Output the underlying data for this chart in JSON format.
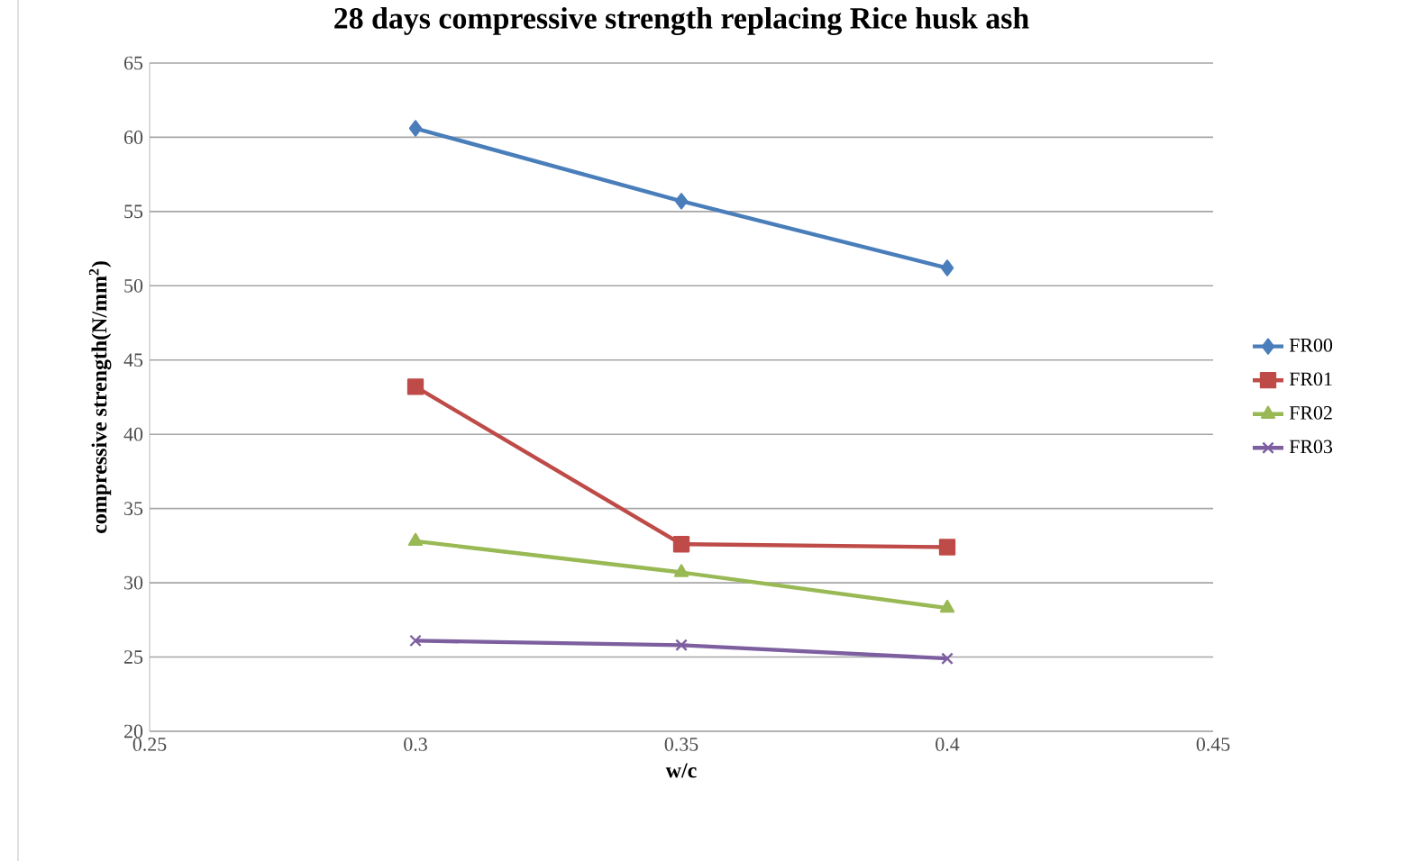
{
  "chart_data": {
    "type": "line",
    "title": "28 days compressive strength replacing Rice husk ash",
    "xlabel": "w/c",
    "ylabel": "compressive strength(N/mm$^{2}$)",
    "x": [
      0.3,
      0.35,
      0.4
    ],
    "series": [
      {
        "name": "FR00",
        "color": "#4a7ebb",
        "marker": "diamond",
        "values": [
          60.6,
          55.7,
          51.2
        ]
      },
      {
        "name": "FR01",
        "color": "#be4b48",
        "marker": "square",
        "values": [
          43.2,
          32.6,
          32.4
        ]
      },
      {
        "name": "FR02",
        "color": "#98b954",
        "marker": "triangle",
        "values": [
          32.8,
          30.7,
          28.3
        ]
      },
      {
        "name": "FR03",
        "color": "#7d5fa0",
        "marker": "cross",
        "values": [
          26.1,
          25.8,
          24.9
        ]
      }
    ],
    "xlim": [
      0.25,
      0.45
    ],
    "xticks": [
      0.25,
      0.3,
      0.35,
      0.4,
      0.45
    ],
    "ylim": [
      20,
      65
    ],
    "yticks": [
      20,
      25,
      30,
      35,
      40,
      45,
      50,
      55,
      60,
      65
    ],
    "grid": "y",
    "legend": "right",
    "line_style": "solid"
  }
}
